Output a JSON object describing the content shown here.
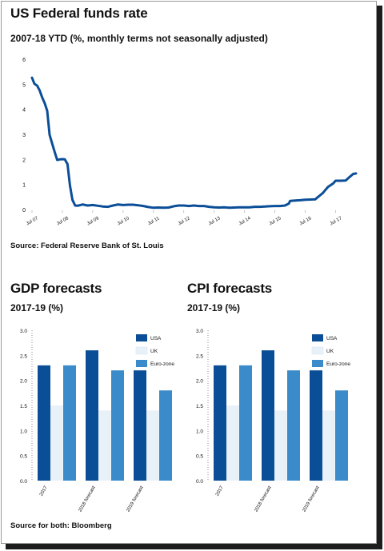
{
  "fed": {
    "title": "US Federal funds rate",
    "subtitle": "2007-18 YTD (%, monthly terms not seasonally adjusted)",
    "source": "Source: Federal Reserve Bank of St. Louis"
  },
  "gdp": {
    "title": "GDP forecasts",
    "subtitle": "2017-19 (%)"
  },
  "cpi": {
    "title": "CPI forecasts",
    "subtitle": "2017-19 (%)"
  },
  "footer": {
    "source": "Source for both: Bloomberg"
  },
  "colors": {
    "usa": "#0b4e98",
    "uk": "#e9f1f8",
    "euro": "#3b8bca",
    "line": "#0b4e98",
    "text": "#111111"
  },
  "chart_data": [
    {
      "type": "line",
      "title": "US Federal funds rate",
      "x_ticks": [
        "Jul 07",
        "Jul 08",
        "Jul 09",
        "Jul 10",
        "Jul 11",
        "Jul 12",
        "Jul 13",
        "Jul 14",
        "Jul 15",
        "Jul 16",
        "Jul 17"
      ],
      "y_ticks": [
        "0",
        "1",
        "2",
        "3",
        "4",
        "5",
        "6"
      ],
      "ylim": [
        0,
        6
      ],
      "xlim": [
        2007.5,
        2018.25
      ],
      "grid": false,
      "series": [
        {
          "points": [
            [
              2007.5,
              5.26
            ],
            [
              2007.58,
              5.02
            ],
            [
              2007.67,
              4.94
            ],
            [
              2007.75,
              4.76
            ],
            [
              2007.83,
              4.49
            ],
            [
              2007.92,
              4.24
            ],
            [
              2008.0,
              3.94
            ],
            [
              2008.08,
              2.98
            ],
            [
              2008.17,
              2.61
            ],
            [
              2008.25,
              2.28
            ],
            [
              2008.33,
              1.98
            ],
            [
              2008.42,
              2.0
            ],
            [
              2008.5,
              2.01
            ],
            [
              2008.58,
              2.0
            ],
            [
              2008.67,
              1.81
            ],
            [
              2008.75,
              0.97
            ],
            [
              2008.83,
              0.39
            ],
            [
              2008.92,
              0.16
            ],
            [
              2009.0,
              0.15
            ],
            [
              2009.17,
              0.2
            ],
            [
              2009.33,
              0.16
            ],
            [
              2009.5,
              0.18
            ],
            [
              2009.67,
              0.15
            ],
            [
              2009.83,
              0.12
            ],
            [
              2010.0,
              0.11
            ],
            [
              2010.17,
              0.16
            ],
            [
              2010.33,
              0.2
            ],
            [
              2010.5,
              0.18
            ],
            [
              2010.67,
              0.19
            ],
            [
              2010.83,
              0.19
            ],
            [
              2011.0,
              0.17
            ],
            [
              2011.17,
              0.14
            ],
            [
              2011.33,
              0.1
            ],
            [
              2011.5,
              0.07
            ],
            [
              2011.67,
              0.08
            ],
            [
              2011.83,
              0.07
            ],
            [
              2012.0,
              0.08
            ],
            [
              2012.17,
              0.13
            ],
            [
              2012.33,
              0.16
            ],
            [
              2012.5,
              0.16
            ],
            [
              2012.67,
              0.14
            ],
            [
              2012.83,
              0.16
            ],
            [
              2013.0,
              0.14
            ],
            [
              2013.17,
              0.14
            ],
            [
              2013.33,
              0.11
            ],
            [
              2013.5,
              0.09
            ],
            [
              2013.67,
              0.08
            ],
            [
              2013.83,
              0.09
            ],
            [
              2014.0,
              0.07
            ],
            [
              2014.17,
              0.08
            ],
            [
              2014.33,
              0.09
            ],
            [
              2014.5,
              0.09
            ],
            [
              2014.67,
              0.09
            ],
            [
              2014.83,
              0.11
            ],
            [
              2015.0,
              0.11
            ],
            [
              2015.17,
              0.12
            ],
            [
              2015.33,
              0.13
            ],
            [
              2015.5,
              0.14
            ],
            [
              2015.67,
              0.14
            ],
            [
              2015.83,
              0.16
            ],
            [
              2015.96,
              0.24
            ],
            [
              2016.0,
              0.34
            ],
            [
              2016.17,
              0.36
            ],
            [
              2016.33,
              0.37
            ],
            [
              2016.5,
              0.39
            ],
            [
              2016.67,
              0.4
            ],
            [
              2016.83,
              0.41
            ],
            [
              2016.96,
              0.54
            ],
            [
              2017.08,
              0.66
            ],
            [
              2017.17,
              0.79
            ],
            [
              2017.25,
              0.9
            ],
            [
              2017.42,
              1.04
            ],
            [
              2017.5,
              1.15
            ],
            [
              2017.67,
              1.15
            ],
            [
              2017.83,
              1.16
            ],
            [
              2017.96,
              1.3
            ],
            [
              2018.08,
              1.42
            ],
            [
              2018.17,
              1.44
            ]
          ]
        }
      ]
    },
    {
      "type": "bar",
      "title": "GDP forecasts",
      "subtitle": "2017-19 (%)",
      "categories": [
        "2017",
        "2018 forecast",
        "2019 forecast"
      ],
      "ylim": [
        0,
        3.0
      ],
      "y_ticks": [
        "0.0",
        "0.5",
        "1.0",
        "1.5",
        "2.0",
        "2.5",
        "3.0"
      ],
      "legend_position": "top-right",
      "series": [
        {
          "name": "USA",
          "values": [
            2.3,
            2.6,
            2.2
          ]
        },
        {
          "name": "UK",
          "values": [
            1.5,
            1.4,
            1.4
          ]
        },
        {
          "name": "Euro-zone",
          "values": [
            2.3,
            2.2,
            1.8
          ]
        }
      ]
    },
    {
      "type": "bar",
      "title": "CPI forecasts",
      "subtitle": "2017-19 (%)",
      "categories": [
        "2017",
        "2018 forecast",
        "2019 forecast"
      ],
      "ylim": [
        0,
        3.0
      ],
      "y_ticks": [
        "0.0",
        "0.5",
        "1.0",
        "1.5",
        "2.0",
        "2.5",
        "3.0"
      ],
      "legend_position": "top-right",
      "series": [
        {
          "name": "USA",
          "values": [
            2.3,
            2.6,
            2.2
          ]
        },
        {
          "name": "UK",
          "values": [
            1.5,
            1.4,
            1.4
          ]
        },
        {
          "name": "Euro-zone",
          "values": [
            2.3,
            2.2,
            1.8
          ]
        }
      ]
    }
  ]
}
